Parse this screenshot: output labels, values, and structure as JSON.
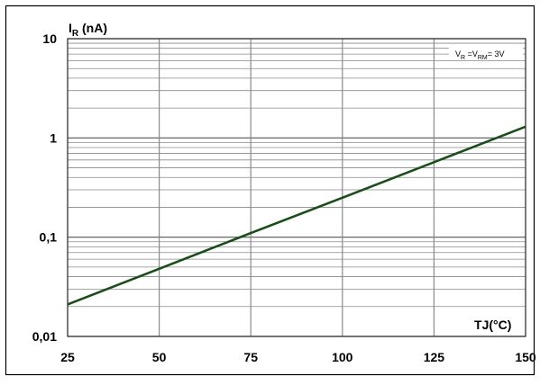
{
  "chart_data": {
    "type": "line",
    "x_scale": "linear",
    "y_scale": "log",
    "xlim": [
      25,
      150
    ],
    "ylim": [
      0.01,
      10
    ],
    "x_ticks": [
      {
        "value": 25,
        "label": "25"
      },
      {
        "value": 50,
        "label": "50"
      },
      {
        "value": 75,
        "label": "75"
      },
      {
        "value": 100,
        "label": "100"
      },
      {
        "value": 125,
        "label": "125"
      },
      {
        "value": 150,
        "label": "150"
      }
    ],
    "y_ticks": [
      {
        "value": 10,
        "label": "10"
      },
      {
        "value": 1,
        "label": "1"
      },
      {
        "value": 0.1,
        "label": "0,1"
      },
      {
        "value": 0.01,
        "label": "0,01"
      }
    ],
    "ylabel": {
      "main": "I",
      "sub": "R",
      "rest": " (nA)"
    },
    "xlabel": {
      "main": "T",
      "sub": "J",
      "rest": "(°C)"
    },
    "annotation": {
      "p1": "V",
      "s1": "R",
      "p2": " =V",
      "s2": "RM",
      "p3": "= 3V"
    },
    "grid": true,
    "minor_grid_y": true,
    "series": [
      {
        "color": "#1a4d1a",
        "x": [
          25,
          50,
          75,
          100,
          125,
          150
        ],
        "y": [
          0.021,
          0.048,
          0.11,
          0.25,
          0.57,
          1.3
        ]
      }
    ]
  }
}
